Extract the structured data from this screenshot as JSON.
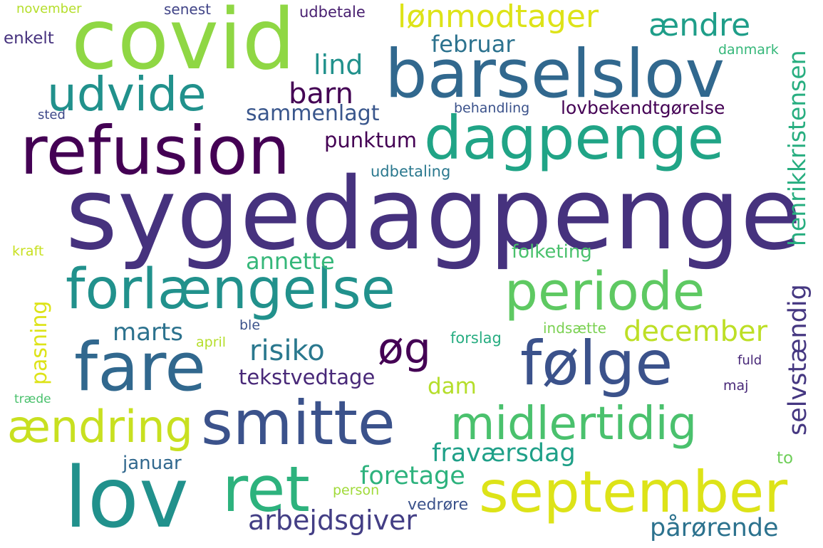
{
  "words": [
    {
      "text": "sygedagpenge",
      "color": "#46327e"
    },
    {
      "text": "covid",
      "color": "#8fd744"
    },
    {
      "text": "barselslov",
      "color": "#31688e"
    },
    {
      "text": "refusion",
      "color": "#440154"
    },
    {
      "text": "dagpenge",
      "color": "#20a486"
    },
    {
      "text": "udvide",
      "color": "#21918c"
    },
    {
      "text": "forlængelse",
      "color": "#21918c"
    },
    {
      "text": "periode",
      "color": "#5ec962"
    },
    {
      "text": "fare",
      "color": "#31688e"
    },
    {
      "text": "følge",
      "color": "#3b528b"
    },
    {
      "text": "smitte",
      "color": "#3b528b"
    },
    {
      "text": "midlertidig",
      "color": "#4ac16d"
    },
    {
      "text": "lov",
      "color": "#21918c"
    },
    {
      "text": "ret",
      "color": "#2db27d"
    },
    {
      "text": "september",
      "color": "#dde318"
    },
    {
      "text": "ændring",
      "color": "#c8e020"
    },
    {
      "text": "lønmodtager",
      "color": "#dde318"
    },
    {
      "text": "ændre",
      "color": "#1f9e89"
    },
    {
      "text": "barn",
      "color": "#440154"
    },
    {
      "text": "lind",
      "color": "#21918c"
    },
    {
      "text": "februar",
      "color": "#2c728e"
    },
    {
      "text": "sammenlagt",
      "color": "#39568c"
    },
    {
      "text": "punktum",
      "color": "#440154"
    },
    {
      "text": "lovbekendtgørelse",
      "color": "#440154"
    },
    {
      "text": "behandling",
      "color": "#3b528b"
    },
    {
      "text": "udbetaling",
      "color": "#2a788e"
    },
    {
      "text": "henrikkristensen",
      "color": "#28ae80"
    },
    {
      "text": "selvstændig",
      "color": "#453781"
    },
    {
      "text": "annette",
      "color": "#35b779"
    },
    {
      "text": "folketing",
      "color": "#4ac16d"
    },
    {
      "text": "december",
      "color": "#bddf26"
    },
    {
      "text": "marts",
      "color": "#2c728e"
    },
    {
      "text": "risiko",
      "color": "#2a788e"
    },
    {
      "text": "øg",
      "color": "#440154"
    },
    {
      "text": "tekstvedtage",
      "color": "#482878"
    },
    {
      "text": "dam",
      "color": "#b5de2b"
    },
    {
      "text": "pasning",
      "color": "#dde318"
    },
    {
      "text": "fraværsdag",
      "color": "#1fa088"
    },
    {
      "text": "foretage",
      "color": "#2db27d"
    },
    {
      "text": "januar",
      "color": "#31688e"
    },
    {
      "text": "arbejdsgiver",
      "color": "#433e85"
    },
    {
      "text": "pårørende",
      "color": "#2c728e"
    },
    {
      "text": "vedrøre",
      "color": "#3b528b"
    },
    {
      "text": "person",
      "color": "#a0da39"
    },
    {
      "text": "forslag",
      "color": "#27ad81"
    },
    {
      "text": "indsætte",
      "color": "#7ad151"
    },
    {
      "text": "april",
      "color": "#b5de2b"
    },
    {
      "text": "ble",
      "color": "#3b528b"
    },
    {
      "text": "fuld",
      "color": "#482878"
    },
    {
      "text": "maj",
      "color": "#482878"
    },
    {
      "text": "to",
      "color": "#6ece58"
    },
    {
      "text": "træde",
      "color": "#4ac16d"
    },
    {
      "text": "kraft",
      "color": "#c8e020"
    },
    {
      "text": "sted",
      "color": "#3e4989"
    },
    {
      "text": "enkelt",
      "color": "#46327e"
    },
    {
      "text": "november",
      "color": "#b5de2b"
    },
    {
      "text": "senest",
      "color": "#414487"
    },
    {
      "text": "udbetale",
      "color": "#481f70"
    },
    {
      "text": "danmark",
      "color": "#35b779"
    }
  ]
}
